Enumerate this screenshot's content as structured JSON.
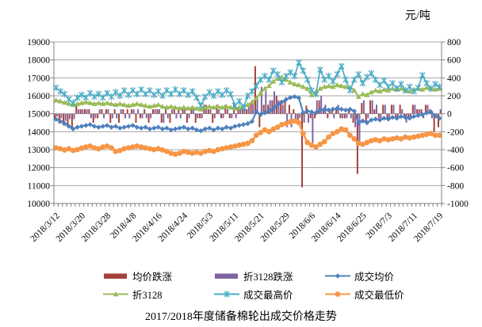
{
  "chart_data": {
    "type": "combo",
    "title": "2017/2018年度储备棉轮出成交价格走势",
    "unit_label": "元/吨",
    "grid": true,
    "legend_position": "bottom",
    "style": {
      "grid_color": "#A6A6A6",
      "axis_color": "#808080",
      "text_color": "#000000",
      "background": "#FFFFFF"
    },
    "y_left": {
      "min": 10000,
      "max": 19000,
      "step": 1000,
      "labels": [
        "19000",
        "18000",
        "17000",
        "16000",
        "15000",
        "14000",
        "13000",
        "12000",
        "11000",
        "10000"
      ]
    },
    "y_right": {
      "min": -1000,
      "max": 800,
      "step": 200,
      "labels": [
        "800",
        "600",
        "400",
        "200",
        "0",
        "-200",
        "-400",
        "-600",
        "-800",
        "-1000"
      ]
    },
    "x_axis": {
      "tick_label_every": 6,
      "visible_tick_labels": [
        "2018/3/12",
        "2018/3/20",
        "2018/3/28",
        "2018/4/8",
        "2018/4/16",
        "2018/4/24",
        "2018/5/3",
        "2018/5/11",
        "2018/5/21",
        "2018/5/29",
        "2018/6/6",
        "2018/6/14",
        "2018/6/25",
        "2018/7/3",
        "2018/7/11",
        "2018/7/19"
      ]
    },
    "categories": [
      "2018/3/12",
      "2018/3/13",
      "2018/3/14",
      "2018/3/15",
      "2018/3/16",
      "2018/3/19",
      "2018/3/20",
      "2018/3/21",
      "2018/3/22",
      "2018/3/23",
      "2018/3/26",
      "2018/3/27",
      "2018/3/28",
      "2018/3/29",
      "2018/3/30",
      "2018/4/2",
      "2018/4/3",
      "2018/4/4",
      "2018/4/8",
      "2018/4/9",
      "2018/4/10",
      "2018/4/11",
      "2018/4/12",
      "2018/4/13",
      "2018/4/16",
      "2018/4/17",
      "2018/4/18",
      "2018/4/19",
      "2018/4/20",
      "2018/4/23",
      "2018/4/24",
      "2018/4/25",
      "2018/4/26",
      "2018/4/27",
      "2018/4/28",
      "2018/5/2",
      "2018/5/3",
      "2018/5/4",
      "2018/5/7",
      "2018/5/8",
      "2018/5/9",
      "2018/5/10",
      "2018/5/11",
      "2018/5/14",
      "2018/5/15",
      "2018/5/16",
      "2018/5/17",
      "2018/5/18",
      "2018/5/21",
      "2018/5/22",
      "2018/5/23",
      "2018/5/24",
      "2018/5/25",
      "2018/5/28",
      "2018/5/29",
      "2018/5/30",
      "2018/5/31",
      "2018/6/1",
      "2018/6/4",
      "2018/6/5",
      "2018/6/6",
      "2018/6/7",
      "2018/6/8",
      "2018/6/11",
      "2018/6/12",
      "2018/6/13",
      "2018/6/14",
      "2018/6/15",
      "2018/6/19",
      "2018/6/20",
      "2018/6/21",
      "2018/6/22",
      "2018/6/25",
      "2018/6/26",
      "2018/6/27",
      "2018/6/28",
      "2018/6/29",
      "2018/7/2",
      "2018/7/3",
      "2018/7/4",
      "2018/7/5",
      "2018/7/6",
      "2018/7/9",
      "2018/7/10",
      "2018/7/11",
      "2018/7/12",
      "2018/7/13",
      "2018/7/16",
      "2018/7/17",
      "2018/7/18",
      "2018/7/19"
    ],
    "series": [
      {
        "name": "均价跌涨",
        "type": "bar",
        "axis": "right",
        "color": "#A5413C",
        "values": [
          -60,
          -110,
          -130,
          -150,
          -150,
          100,
          50,
          50,
          50,
          -100,
          -50,
          50,
          50,
          -100,
          50,
          -100,
          50,
          50,
          50,
          -100,
          -50,
          50,
          -100,
          50,
          50,
          -100,
          50,
          -100,
          50,
          50,
          50,
          -100,
          50,
          -100,
          -50,
          100,
          50,
          -100,
          100,
          -50,
          100,
          -50,
          100,
          50,
          50,
          50,
          120,
          530,
          -150,
          100,
          100,
          150,
          200,
          150,
          150,
          100,
          50,
          -70,
          -820,
          90,
          -50,
          -50,
          150,
          50,
          -50,
          50,
          50,
          -50,
          -50,
          50,
          -100,
          -670,
          120,
          -100,
          150,
          50,
          -50,
          100,
          -50,
          100,
          -50,
          100,
          -50,
          -50,
          100,
          50,
          50,
          100,
          50,
          -200,
          -150
        ]
      },
      {
        "name": "折3128跌涨",
        "type": "bar",
        "axis": "right",
        "color": "#8064A2",
        "values": [
          -30,
          -50,
          -80,
          -60,
          -60,
          50,
          50,
          50,
          -50,
          -50,
          50,
          -50,
          50,
          -50,
          -50,
          50,
          -50,
          -50,
          50,
          50,
          -50,
          -50,
          -50,
          50,
          50,
          -100,
          -50,
          50,
          -50,
          -50,
          50,
          -50,
          50,
          -50,
          -50,
          100,
          50,
          -50,
          50,
          -50,
          50,
          -50,
          -50,
          50,
          50,
          100,
          150,
          200,
          300,
          250,
          150,
          250,
          150,
          100,
          -150,
          -150,
          -100,
          -50,
          -100,
          -100,
          -350,
          150,
          200,
          100,
          50,
          -50,
          100,
          -50,
          -50,
          -50,
          -150,
          -350,
          150,
          -50,
          150,
          100,
          -50,
          100,
          -50,
          100,
          -50,
          50,
          -100,
          -50,
          100,
          50,
          -50,
          100,
          -50,
          -50,
          50
        ]
      },
      {
        "name": "成交均价",
        "type": "line",
        "marker": "diamond",
        "axis": "left",
        "color": "#4F81BD",
        "values": [
          14690,
          14580,
          14450,
          14300,
          14150,
          14250,
          14300,
          14350,
          14400,
          14300,
          14250,
          14300,
          14350,
          14250,
          14300,
          14200,
          14250,
          14300,
          14350,
          14250,
          14200,
          14250,
          14150,
          14200,
          14250,
          14150,
          14200,
          14100,
          14150,
          14200,
          14250,
          14150,
          14200,
          14100,
          14050,
          14150,
          14200,
          14100,
          14200,
          14150,
          14250,
          14200,
          14300,
          14350,
          14400,
          14450,
          14570,
          15100,
          14950,
          15050,
          15150,
          15300,
          15500,
          15650,
          15800,
          15900,
          15950,
          15880,
          15060,
          15150,
          15100,
          15050,
          15200,
          15250,
          15200,
          15250,
          15300,
          15250,
          15200,
          15250,
          15150,
          14480,
          14600,
          14500,
          14650,
          14700,
          14650,
          14750,
          14700,
          14800,
          14750,
          14850,
          14800,
          14750,
          14850,
          14900,
          14950,
          15050,
          15100,
          14900,
          14750
        ]
      },
      {
        "name": "折3128",
        "type": "line",
        "marker": "triangle",
        "axis": "left",
        "color": "#9BBB59",
        "values": [
          15750,
          15700,
          15620,
          15560,
          15500,
          15550,
          15600,
          15650,
          15600,
          15550,
          15600,
          15550,
          15600,
          15550,
          15500,
          15550,
          15500,
          15450,
          15500,
          15550,
          15500,
          15450,
          15400,
          15450,
          15500,
          15400,
          15350,
          15400,
          15350,
          15300,
          15350,
          15300,
          15350,
          15300,
          15250,
          15350,
          15400,
          15350,
          15400,
          15350,
          15400,
          15350,
          15300,
          15350,
          15400,
          15500,
          15650,
          15850,
          16150,
          16400,
          16550,
          16800,
          16950,
          17050,
          16900,
          16750,
          16650,
          16600,
          16500,
          16400,
          16050,
          16200,
          16400,
          16500,
          16550,
          16500,
          16600,
          16550,
          16500,
          16450,
          16300,
          15950,
          16100,
          16050,
          16200,
          16300,
          16250,
          16350,
          16300,
          16400,
          16350,
          16400,
          16300,
          16250,
          16350,
          16400,
          16350,
          16450,
          16400,
          16350,
          16400
        ]
      },
      {
        "name": "成交最高价",
        "type": "line",
        "marker": "star",
        "axis": "left",
        "color": "#4BACC6",
        "values": [
          16450,
          16250,
          16100,
          15800,
          15600,
          15900,
          16050,
          15900,
          16150,
          15950,
          16100,
          15900,
          16150,
          15950,
          16200,
          16000,
          16300,
          16050,
          16300,
          16100,
          16350,
          16100,
          16300,
          16050,
          16250,
          16000,
          16300,
          16100,
          16350,
          16100,
          16300,
          16050,
          16250,
          15900,
          15450,
          15950,
          16200,
          16000,
          16250,
          16050,
          16300,
          16100,
          15450,
          15700,
          15350,
          16000,
          16250,
          16550,
          16900,
          17100,
          16900,
          17400,
          17200,
          16750,
          17100,
          17300,
          17100,
          17850,
          17400,
          16900,
          16300,
          16100,
          17450,
          16900,
          17100,
          16800,
          17200,
          17650,
          16900,
          16300,
          16900,
          17200,
          16700,
          17050,
          17250,
          16900,
          16600,
          16850,
          16500,
          16700,
          16400,
          16650,
          16300,
          16500,
          16250,
          16450,
          17150,
          16700,
          16400,
          16650,
          16500
        ]
      },
      {
        "name": "成交最低价",
        "type": "line",
        "marker": "circle",
        "axis": "left",
        "color": "#F79646",
        "values": [
          13100,
          13050,
          12980,
          13050,
          12950,
          13000,
          13080,
          13150,
          13200,
          13100,
          13050,
          13150,
          13200,
          13100,
          12900,
          12950,
          13050,
          13100,
          13150,
          13200,
          13150,
          13100,
          13050,
          13000,
          13050,
          12980,
          12900,
          12800,
          12750,
          12800,
          12900,
          12850,
          12800,
          12850,
          12800,
          12900,
          12950,
          12900,
          13000,
          13050,
          13100,
          13150,
          13200,
          13250,
          13300,
          13350,
          13500,
          13800,
          13950,
          14100,
          14000,
          14150,
          14250,
          14400,
          14450,
          14550,
          14600,
          14500,
          13900,
          13400,
          13250,
          13150,
          13300,
          13450,
          13700,
          13900,
          14000,
          14150,
          14100,
          13800,
          13600,
          13350,
          13300,
          13400,
          13500,
          13550,
          13500,
          13600,
          13550,
          13600,
          13650,
          13600,
          13700,
          13650,
          13700,
          13750,
          13800,
          13850,
          13900,
          13800,
          13800
        ]
      }
    ],
    "legend_order": [
      [
        0,
        1,
        2
      ],
      [
        3,
        4,
        5
      ]
    ]
  }
}
